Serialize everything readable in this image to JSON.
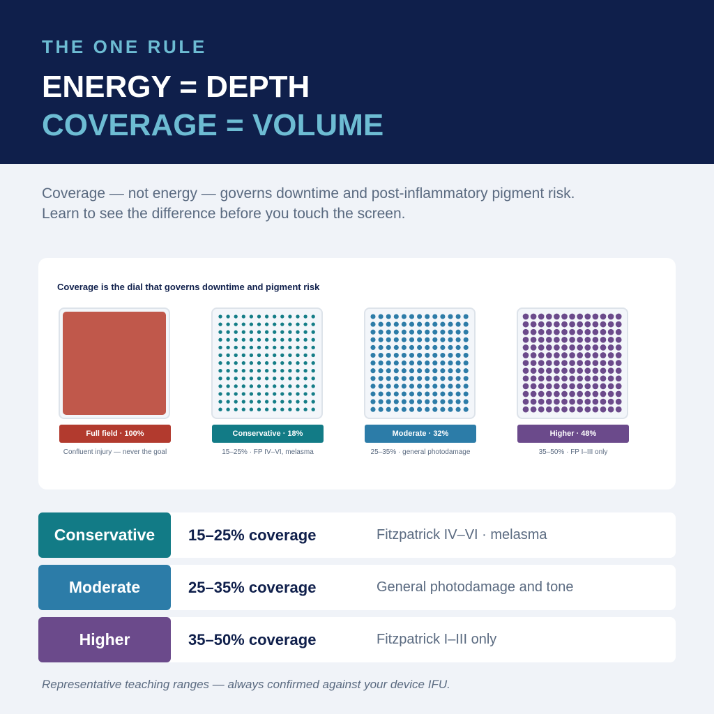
{
  "header": {
    "eyebrow": "THE ONE RULE",
    "line1": "ENERGY = DEPTH",
    "line2": "COVERAGE = VOLUME"
  },
  "intro": "Coverage — not energy — governs downtime and post-inflammatory pigment risk. Learn to see the difference before you touch the screen.",
  "card": {
    "title": "Coverage is the dial that governs downtime and pigment risk",
    "tiles": [
      {
        "label": "Full field · 100%",
        "caption": "Confluent injury — never the goal",
        "coverage_percent": 100,
        "color": "#c0584b",
        "label_color": "#b23a2e"
      },
      {
        "label": "Conservative · 18%",
        "caption": "15–25% · FP IV–VI, melasma",
        "coverage_percent": 18,
        "color": "#147d87",
        "label_color": "#127b86"
      },
      {
        "label": "Moderate · 32%",
        "caption": "25–35% · general photodamage",
        "coverage_percent": 32,
        "color": "#2d7ca8",
        "label_color": "#2c7ca8"
      },
      {
        "label": "Higher · 48%",
        "caption": "35–50% · FP I–III only",
        "coverage_percent": 48,
        "color": "#6b4a8b",
        "label_color": "#6b4a8b"
      }
    ]
  },
  "rows": [
    {
      "badge": "Conservative",
      "coverage": "15–25% coverage",
      "desc": "Fitzpatrick IV–VI · melasma",
      "color": "#127b86"
    },
    {
      "badge": "Moderate",
      "coverage": "25–35% coverage",
      "desc": "General photodamage and tone",
      "color": "#2c7ca8"
    },
    {
      "badge": "Higher",
      "coverage": "35–50% coverage",
      "desc": "Fitzpatrick I–III only",
      "color": "#6b4a8b"
    }
  ],
  "footnote": "Representative teaching ranges — always confirmed against your device IFU."
}
